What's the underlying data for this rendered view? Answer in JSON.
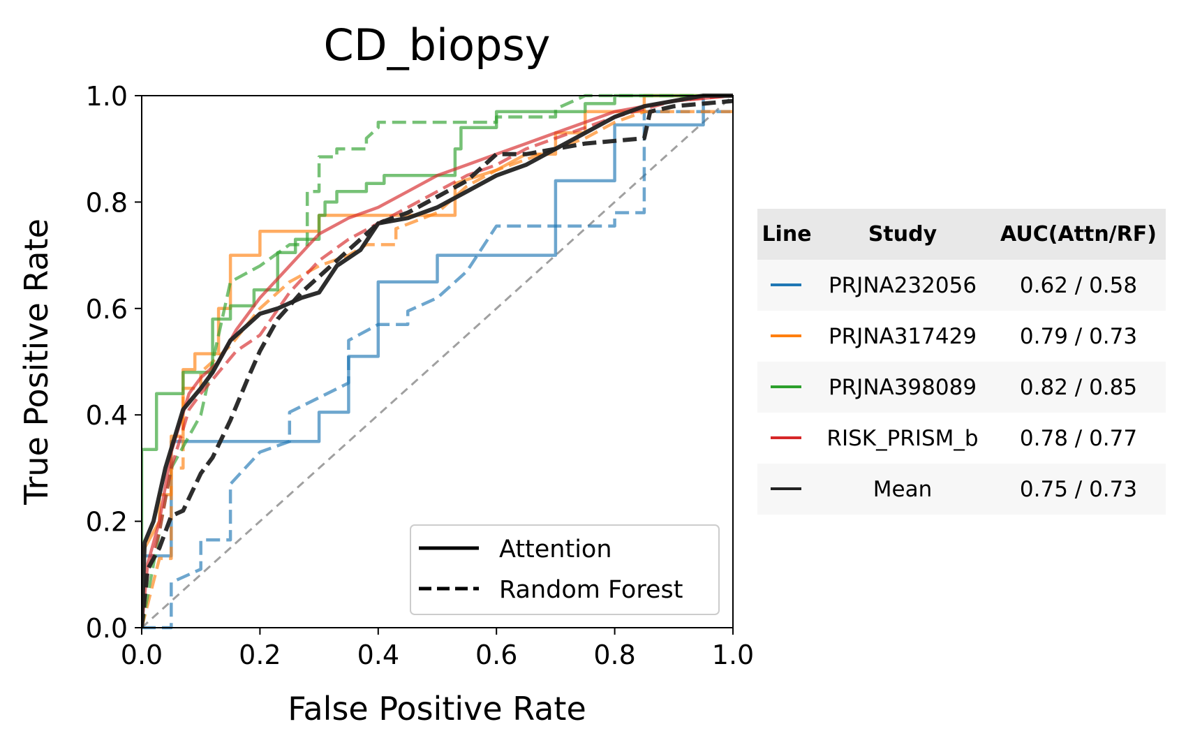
{
  "chart_data": {
    "type": "line",
    "title": "CD_biopsy",
    "xlabel": "False Positive Rate",
    "ylabel": "True Positive Rate",
    "xlim": [
      0,
      1
    ],
    "ylim": [
      0,
      1
    ],
    "xticks": [
      "0.0",
      "0.2",
      "0.4",
      "0.6",
      "0.8",
      "1.0"
    ],
    "yticks": [
      "0.0",
      "0.2",
      "0.4",
      "0.6",
      "0.8",
      "1.0"
    ],
    "grid": false,
    "legend": {
      "placement": "lower-right",
      "entries": [
        {
          "label": "Attention",
          "style": "solid"
        },
        {
          "label": "Random Forest",
          "style": "dashed"
        }
      ]
    },
    "table": {
      "headers": [
        "Line",
        "Study",
        "AUC(Attn/RF)"
      ],
      "rows": [
        {
          "study": "PRJNA232056",
          "auc": "0.62 / 0.58",
          "color": "#1f77b4"
        },
        {
          "study": "PRJNA317429",
          "auc": "0.79 / 0.73",
          "color": "#ff7f0e"
        },
        {
          "study": "PRJNA398089",
          "auc": "0.82 / 0.85",
          "color": "#2ca02c"
        },
        {
          "study": "RISK_PRISM_b",
          "auc": "0.78 / 0.77",
          "color": "#d62728"
        },
        {
          "study": "Mean",
          "auc": "0.75 / 0.73",
          "color": "#222222"
        }
      ]
    },
    "series": [
      {
        "name": "PRJNA232056",
        "model": "Attention",
        "style": "solid",
        "color": "#1f77b4",
        "points": [
          [
            0,
            0
          ],
          [
            0,
            0.135
          ],
          [
            0.05,
            0.135
          ],
          [
            0.05,
            0.35
          ],
          [
            0.3,
            0.35
          ],
          [
            0.3,
            0.405
          ],
          [
            0.35,
            0.405
          ],
          [
            0.35,
            0.51
          ],
          [
            0.4,
            0.51
          ],
          [
            0.4,
            0.65
          ],
          [
            0.5,
            0.65
          ],
          [
            0.5,
            0.7
          ],
          [
            0.7,
            0.7
          ],
          [
            0.7,
            0.84
          ],
          [
            0.8,
            0.84
          ],
          [
            0.8,
            0.945
          ],
          [
            0.95,
            0.945
          ],
          [
            0.95,
            1.0
          ],
          [
            1.0,
            1.0
          ]
        ]
      },
      {
        "name": "PRJNA232056",
        "model": "Random Forest",
        "style": "dashed",
        "color": "#1f77b4",
        "points": [
          [
            0,
            0
          ],
          [
            0.05,
            0
          ],
          [
            0.05,
            0.085
          ],
          [
            0.1,
            0.11
          ],
          [
            0.1,
            0.165
          ],
          [
            0.15,
            0.165
          ],
          [
            0.15,
            0.27
          ],
          [
            0.2,
            0.33
          ],
          [
            0.25,
            0.35
          ],
          [
            0.25,
            0.405
          ],
          [
            0.35,
            0.46
          ],
          [
            0.35,
            0.54
          ],
          [
            0.4,
            0.57
          ],
          [
            0.45,
            0.57
          ],
          [
            0.45,
            0.595
          ],
          [
            0.5,
            0.62
          ],
          [
            0.55,
            0.67
          ],
          [
            0.6,
            0.755
          ],
          [
            0.8,
            0.755
          ],
          [
            0.8,
            0.78
          ],
          [
            0.85,
            0.78
          ],
          [
            0.85,
            0.97
          ],
          [
            1.0,
            0.97
          ]
        ]
      },
      {
        "name": "PRJNA317429",
        "model": "Attention",
        "style": "solid",
        "color": "#ff7f0e",
        "points": [
          [
            0,
            0
          ],
          [
            0,
            0.14
          ],
          [
            0.03,
            0.2
          ],
          [
            0.03,
            0.25
          ],
          [
            0.05,
            0.25
          ],
          [
            0.05,
            0.36
          ],
          [
            0.07,
            0.36
          ],
          [
            0.07,
            0.485
          ],
          [
            0.09,
            0.485
          ],
          [
            0.09,
            0.515
          ],
          [
            0.13,
            0.515
          ],
          [
            0.13,
            0.6
          ],
          [
            0.15,
            0.6
          ],
          [
            0.15,
            0.7
          ],
          [
            0.2,
            0.7
          ],
          [
            0.2,
            0.745
          ],
          [
            0.3,
            0.745
          ],
          [
            0.3,
            0.775
          ],
          [
            0.53,
            0.775
          ],
          [
            0.53,
            0.835
          ],
          [
            0.6,
            0.86
          ],
          [
            0.65,
            0.89
          ],
          [
            0.7,
            0.89
          ],
          [
            0.7,
            0.93
          ],
          [
            0.75,
            0.93
          ],
          [
            0.75,
            0.97
          ],
          [
            0.85,
            0.97
          ],
          [
            0.85,
            1.0
          ],
          [
            1.0,
            1.0
          ]
        ]
      },
      {
        "name": "PRJNA317429",
        "model": "Random Forest",
        "style": "dashed",
        "color": "#ff7f0e",
        "points": [
          [
            0,
            0
          ],
          [
            0.03,
            0.13
          ],
          [
            0.05,
            0.13
          ],
          [
            0.05,
            0.3
          ],
          [
            0.07,
            0.3
          ],
          [
            0.07,
            0.45
          ],
          [
            0.1,
            0.45
          ],
          [
            0.1,
            0.48
          ],
          [
            0.15,
            0.53
          ],
          [
            0.2,
            0.6
          ],
          [
            0.25,
            0.65
          ],
          [
            0.3,
            0.68
          ],
          [
            0.35,
            0.7
          ],
          [
            0.38,
            0.72
          ],
          [
            0.43,
            0.72
          ],
          [
            0.43,
            0.75
          ],
          [
            0.5,
            0.78
          ],
          [
            0.55,
            0.83
          ],
          [
            0.6,
            0.86
          ],
          [
            0.65,
            0.88
          ],
          [
            0.7,
            0.9
          ],
          [
            0.75,
            0.92
          ],
          [
            0.8,
            0.95
          ],
          [
            0.85,
            0.97
          ],
          [
            1.0,
            0.97
          ]
        ]
      },
      {
        "name": "PRJNA398089",
        "model": "Attention",
        "style": "solid",
        "color": "#2ca02c",
        "points": [
          [
            0,
            0
          ],
          [
            0,
            0.335
          ],
          [
            0.025,
            0.335
          ],
          [
            0.025,
            0.44
          ],
          [
            0.07,
            0.44
          ],
          [
            0.07,
            0.48
          ],
          [
            0.12,
            0.48
          ],
          [
            0.12,
            0.58
          ],
          [
            0.15,
            0.58
          ],
          [
            0.15,
            0.605
          ],
          [
            0.19,
            0.605
          ],
          [
            0.19,
            0.635
          ],
          [
            0.23,
            0.635
          ],
          [
            0.23,
            0.705
          ],
          [
            0.26,
            0.705
          ],
          [
            0.26,
            0.73
          ],
          [
            0.3,
            0.73
          ],
          [
            0.3,
            0.775
          ],
          [
            0.31,
            0.775
          ],
          [
            0.31,
            0.8
          ],
          [
            0.33,
            0.8
          ],
          [
            0.33,
            0.82
          ],
          [
            0.38,
            0.82
          ],
          [
            0.38,
            0.835
          ],
          [
            0.41,
            0.835
          ],
          [
            0.41,
            0.85
          ],
          [
            0.53,
            0.85
          ],
          [
            0.53,
            0.9
          ],
          [
            0.54,
            0.9
          ],
          [
            0.54,
            0.94
          ],
          [
            0.6,
            0.94
          ],
          [
            0.6,
            0.97
          ],
          [
            0.75,
            0.97
          ],
          [
            0.75,
            0.985
          ],
          [
            0.8,
            0.985
          ],
          [
            0.8,
            1.0
          ],
          [
            1.0,
            1.0
          ]
        ]
      },
      {
        "name": "PRJNA398089",
        "model": "Random Forest",
        "style": "dashed",
        "color": "#2ca02c",
        "points": [
          [
            0,
            0
          ],
          [
            0.05,
            0.3
          ],
          [
            0.1,
            0.4
          ],
          [
            0.15,
            0.65
          ],
          [
            0.2,
            0.68
          ],
          [
            0.25,
            0.72
          ],
          [
            0.28,
            0.72
          ],
          [
            0.28,
            0.82
          ],
          [
            0.3,
            0.82
          ],
          [
            0.3,
            0.885
          ],
          [
            0.33,
            0.885
          ],
          [
            0.33,
            0.9
          ],
          [
            0.38,
            0.9
          ],
          [
            0.38,
            0.92
          ],
          [
            0.4,
            0.94
          ],
          [
            0.4,
            0.95
          ],
          [
            0.6,
            0.95
          ],
          [
            0.6,
            0.96
          ],
          [
            0.7,
            0.96
          ],
          [
            0.7,
            0.975
          ],
          [
            0.75,
            1.0
          ],
          [
            1.0,
            1.0
          ]
        ]
      },
      {
        "name": "RISK_PRISM_b",
        "model": "Attention",
        "style": "solid",
        "color": "#d62728",
        "points": [
          [
            0,
            0
          ],
          [
            0.01,
            0.12
          ],
          [
            0.03,
            0.2
          ],
          [
            0.05,
            0.33
          ],
          [
            0.08,
            0.44
          ],
          [
            0.1,
            0.47
          ],
          [
            0.13,
            0.5
          ],
          [
            0.16,
            0.56
          ],
          [
            0.2,
            0.62
          ],
          [
            0.25,
            0.68
          ],
          [
            0.3,
            0.74
          ],
          [
            0.35,
            0.77
          ],
          [
            0.4,
            0.79
          ],
          [
            0.45,
            0.82
          ],
          [
            0.5,
            0.85
          ],
          [
            0.55,
            0.87
          ],
          [
            0.6,
            0.89
          ],
          [
            0.65,
            0.91
          ],
          [
            0.7,
            0.93
          ],
          [
            0.75,
            0.95
          ],
          [
            0.8,
            0.97
          ],
          [
            0.85,
            0.98
          ],
          [
            0.9,
            0.99
          ],
          [
            1.0,
            1.0
          ]
        ]
      },
      {
        "name": "RISK_PRISM_b",
        "model": "Random Forest",
        "style": "dashed",
        "color": "#d62728",
        "points": [
          [
            0,
            0
          ],
          [
            0.01,
            0.1
          ],
          [
            0.03,
            0.18
          ],
          [
            0.05,
            0.3
          ],
          [
            0.08,
            0.41
          ],
          [
            0.1,
            0.44
          ],
          [
            0.13,
            0.48
          ],
          [
            0.16,
            0.52
          ],
          [
            0.2,
            0.55
          ],
          [
            0.25,
            0.63
          ],
          [
            0.3,
            0.69
          ],
          [
            0.35,
            0.73
          ],
          [
            0.4,
            0.76
          ],
          [
            0.45,
            0.79
          ],
          [
            0.5,
            0.82
          ],
          [
            0.55,
            0.85
          ],
          [
            0.6,
            0.87
          ],
          [
            0.65,
            0.9
          ],
          [
            0.7,
            0.92
          ],
          [
            0.75,
            0.94
          ],
          [
            0.8,
            0.96
          ],
          [
            0.85,
            0.975
          ],
          [
            0.9,
            0.99
          ],
          [
            1.0,
            1.0
          ]
        ]
      },
      {
        "name": "Mean",
        "model": "Attention",
        "style": "solid",
        "color": "#222222",
        "points": [
          [
            0,
            0
          ],
          [
            0.005,
            0.16
          ],
          [
            0.02,
            0.2
          ],
          [
            0.04,
            0.3
          ],
          [
            0.07,
            0.41
          ],
          [
            0.1,
            0.45
          ],
          [
            0.12,
            0.48
          ],
          [
            0.15,
            0.54
          ],
          [
            0.18,
            0.57
          ],
          [
            0.2,
            0.59
          ],
          [
            0.23,
            0.6
          ],
          [
            0.27,
            0.62
          ],
          [
            0.3,
            0.63
          ],
          [
            0.33,
            0.68
          ],
          [
            0.37,
            0.71
          ],
          [
            0.4,
            0.76
          ],
          [
            0.45,
            0.77
          ],
          [
            0.5,
            0.79
          ],
          [
            0.55,
            0.82
          ],
          [
            0.6,
            0.85
          ],
          [
            0.65,
            0.87
          ],
          [
            0.7,
            0.9
          ],
          [
            0.75,
            0.93
          ],
          [
            0.8,
            0.96
          ],
          [
            0.85,
            0.98
          ],
          [
            0.9,
            0.99
          ],
          [
            0.95,
            1.0
          ],
          [
            1.0,
            1.0
          ]
        ]
      },
      {
        "name": "Mean",
        "model": "Random Forest",
        "style": "dashed",
        "color": "#222222",
        "points": [
          [
            0,
            0
          ],
          [
            0.01,
            0.11
          ],
          [
            0.03,
            0.15
          ],
          [
            0.05,
            0.21
          ],
          [
            0.07,
            0.22
          ],
          [
            0.1,
            0.29
          ],
          [
            0.12,
            0.32
          ],
          [
            0.15,
            0.39
          ],
          [
            0.18,
            0.47
          ],
          [
            0.2,
            0.52
          ],
          [
            0.23,
            0.58
          ],
          [
            0.27,
            0.63
          ],
          [
            0.3,
            0.66
          ],
          [
            0.35,
            0.71
          ],
          [
            0.4,
            0.76
          ],
          [
            0.45,
            0.78
          ],
          [
            0.5,
            0.81
          ],
          [
            0.55,
            0.84
          ],
          [
            0.6,
            0.89
          ],
          [
            0.65,
            0.89
          ],
          [
            0.7,
            0.9
          ],
          [
            0.75,
            0.91
          ],
          [
            0.85,
            0.92
          ],
          [
            0.86,
            0.97
          ],
          [
            0.9,
            0.98
          ],
          [
            1.0,
            0.99
          ]
        ]
      },
      {
        "name": "Chance",
        "model": "Reference",
        "style": "dashed",
        "color": "#a0a0a0",
        "points": [
          [
            0,
            0
          ],
          [
            1,
            1
          ]
        ]
      }
    ]
  }
}
